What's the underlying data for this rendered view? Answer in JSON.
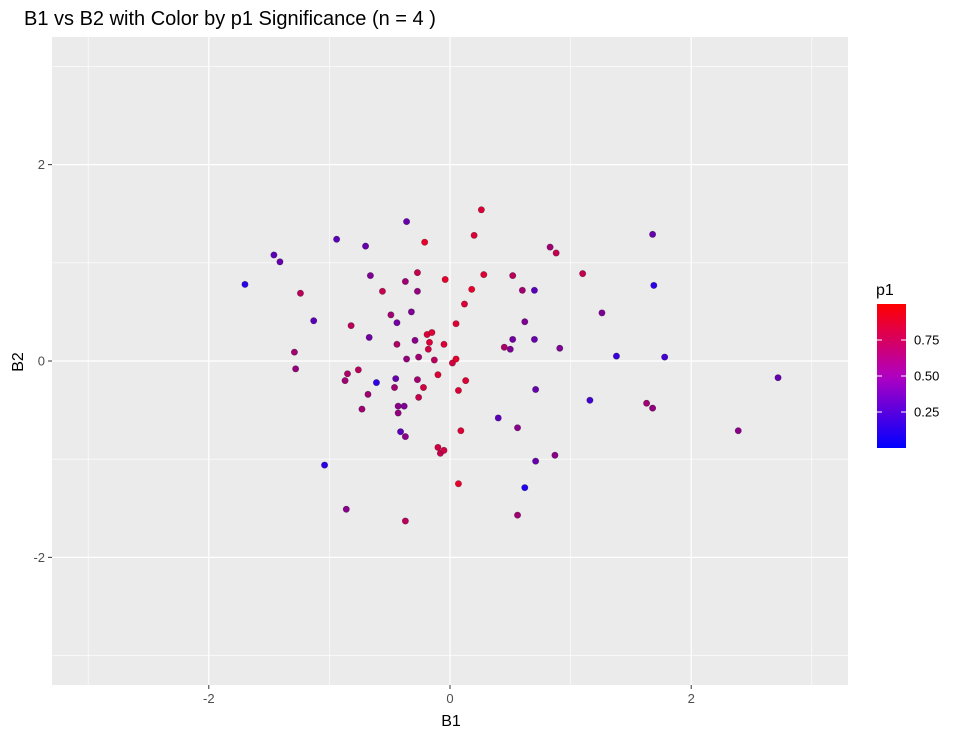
{
  "chart_data": {
    "type": "scatter",
    "title": "B1 vs B2 with Color by p1 Significance (n = 4 )",
    "xlabel": "B1",
    "ylabel": "B2",
    "xlim": [
      -3.3,
      3.3
    ],
    "ylim": [
      -3.3,
      3.3
    ],
    "x_ticks": [
      -2,
      0,
      2
    ],
    "y_ticks": [
      -2,
      0,
      2
    ],
    "x_tick_labels": [
      "-2",
      "0",
      "2"
    ],
    "y_tick_labels": [
      "-2",
      "0",
      "2"
    ],
    "x_minor_breaks": [
      -3,
      -1,
      1,
      3
    ],
    "y_minor_breaks": [
      -3,
      -1,
      1,
      3
    ],
    "grid": true,
    "panel_background": "#EBEBEB",
    "grid_color": "#FFFFFF",
    "legend": {
      "title": "p1",
      "placement": "right",
      "type": "colorbar",
      "low_color": "#0000FF",
      "high_color": "#FF0000",
      "range": [
        0,
        1
      ],
      "breaks": [
        0.25,
        0.5,
        0.75
      ],
      "labels": [
        "0.25",
        "0.50",
        "0.75"
      ]
    },
    "points": [
      {
        "x": -1.7,
        "y": 0.78,
        "p": 0.1
      },
      {
        "x": -1.46,
        "y": 1.08,
        "p": 0.3
      },
      {
        "x": -1.41,
        "y": 1.01,
        "p": 0.35
      },
      {
        "x": -1.24,
        "y": 0.69,
        "p": 0.7
      },
      {
        "x": -1.13,
        "y": 0.41,
        "p": 0.3
      },
      {
        "x": -1.29,
        "y": 0.09,
        "p": 0.6
      },
      {
        "x": -1.28,
        "y": -0.08,
        "p": 0.55
      },
      {
        "x": -1.04,
        "y": -1.06,
        "p": 0.1
      },
      {
        "x": -0.94,
        "y": 1.24,
        "p": 0.3
      },
      {
        "x": -0.86,
        "y": -1.51,
        "p": 0.5
      },
      {
        "x": -0.87,
        "y": -0.2,
        "p": 0.6
      },
      {
        "x": -0.85,
        "y": -0.13,
        "p": 0.65
      },
      {
        "x": -0.82,
        "y": 0.36,
        "p": 0.7
      },
      {
        "x": -0.76,
        "y": -0.09,
        "p": 0.7
      },
      {
        "x": -0.73,
        "y": -0.49,
        "p": 0.6
      },
      {
        "x": -0.7,
        "y": 1.17,
        "p": 0.35
      },
      {
        "x": -0.66,
        "y": 0.87,
        "p": 0.45
      },
      {
        "x": -0.67,
        "y": 0.24,
        "p": 0.4
      },
      {
        "x": -0.68,
        "y": -0.34,
        "p": 0.6
      },
      {
        "x": -0.61,
        "y": -0.22,
        "p": 0.1
      },
      {
        "x": -0.56,
        "y": 0.71,
        "p": 0.75
      },
      {
        "x": -0.49,
        "y": 0.47,
        "p": 0.6
      },
      {
        "x": -0.44,
        "y": 0.39,
        "p": 0.4
      },
      {
        "x": -0.44,
        "y": 0.17,
        "p": 0.65
      },
      {
        "x": -0.45,
        "y": -0.18,
        "p": 0.35
      },
      {
        "x": -0.46,
        "y": -0.27,
        "p": 0.6
      },
      {
        "x": -0.43,
        "y": -0.46,
        "p": 0.5
      },
      {
        "x": -0.43,
        "y": -0.53,
        "p": 0.55
      },
      {
        "x": -0.41,
        "y": -0.72,
        "p": 0.3
      },
      {
        "x": -0.38,
        "y": -0.46,
        "p": 0.45
      },
      {
        "x": -0.37,
        "y": -0.77,
        "p": 0.5
      },
      {
        "x": -0.36,
        "y": 1.42,
        "p": 0.35
      },
      {
        "x": -0.37,
        "y": 0.81,
        "p": 0.6
      },
      {
        "x": -0.36,
        "y": 0.02,
        "p": 0.55
      },
      {
        "x": -0.37,
        "y": -1.63,
        "p": 0.7
      },
      {
        "x": -0.32,
        "y": 0.5,
        "p": 0.45
      },
      {
        "x": -0.27,
        "y": 0.9,
        "p": 0.75
      },
      {
        "x": -0.27,
        "y": 0.71,
        "p": 0.55
      },
      {
        "x": -0.29,
        "y": 0.21,
        "p": 0.5
      },
      {
        "x": -0.26,
        "y": 0.04,
        "p": 0.6
      },
      {
        "x": -0.27,
        "y": -0.19,
        "p": 0.6
      },
      {
        "x": -0.26,
        "y": -0.37,
        "p": 0.75
      },
      {
        "x": -0.21,
        "y": 1.21,
        "p": 0.9
      },
      {
        "x": -0.22,
        "y": -0.27,
        "p": 0.8
      },
      {
        "x": -0.19,
        "y": 0.27,
        "p": 0.85
      },
      {
        "x": -0.17,
        "y": 0.19,
        "p": 0.85
      },
      {
        "x": -0.18,
        "y": 0.12,
        "p": 0.8
      },
      {
        "x": -0.15,
        "y": 0.29,
        "p": 0.85
      },
      {
        "x": -0.13,
        "y": 0.01,
        "p": 0.7
      },
      {
        "x": -0.1,
        "y": -0.14,
        "p": 0.85
      },
      {
        "x": -0.1,
        "y": -0.88,
        "p": 0.8
      },
      {
        "x": -0.08,
        "y": -0.94,
        "p": 0.75
      },
      {
        "x": -0.05,
        "y": -0.91,
        "p": 0.8
      },
      {
        "x": -0.05,
        "y": 0.17,
        "p": 0.85
      },
      {
        "x": -0.04,
        "y": 0.83,
        "p": 0.9
      },
      {
        "x": 0.02,
        "y": -0.02,
        "p": 0.8
      },
      {
        "x": 0.05,
        "y": 0.02,
        "p": 0.9
      },
      {
        "x": 0.05,
        "y": 0.38,
        "p": 0.85
      },
      {
        "x": 0.07,
        "y": -0.3,
        "p": 0.85
      },
      {
        "x": 0.07,
        "y": -1.25,
        "p": 0.9
      },
      {
        "x": 0.09,
        "y": -0.71,
        "p": 0.85
      },
      {
        "x": 0.12,
        "y": 0.58,
        "p": 0.85
      },
      {
        "x": 0.13,
        "y": -0.2,
        "p": 0.85
      },
      {
        "x": 0.18,
        "y": 0.73,
        "p": 0.9
      },
      {
        "x": 0.2,
        "y": 1.28,
        "p": 0.85
      },
      {
        "x": 0.26,
        "y": 1.54,
        "p": 0.85
      },
      {
        "x": 0.28,
        "y": 0.88,
        "p": 0.85
      },
      {
        "x": 0.4,
        "y": -0.58,
        "p": 0.3
      },
      {
        "x": 0.45,
        "y": 0.14,
        "p": 0.65
      },
      {
        "x": 0.5,
        "y": 0.12,
        "p": 0.45
      },
      {
        "x": 0.52,
        "y": 0.22,
        "p": 0.4
      },
      {
        "x": 0.52,
        "y": 0.87,
        "p": 0.7
      },
      {
        "x": 0.56,
        "y": -0.68,
        "p": 0.5
      },
      {
        "x": 0.56,
        "y": -1.57,
        "p": 0.6
      },
      {
        "x": 0.6,
        "y": 0.72,
        "p": 0.6
      },
      {
        "x": 0.62,
        "y": 0.4,
        "p": 0.45
      },
      {
        "x": 0.62,
        "y": -1.29,
        "p": 0.05
      },
      {
        "x": 0.7,
        "y": 0.72,
        "p": 0.3
      },
      {
        "x": 0.7,
        "y": 0.22,
        "p": 0.35
      },
      {
        "x": 0.71,
        "y": -0.29,
        "p": 0.35
      },
      {
        "x": 0.71,
        "y": -1.02,
        "p": 0.35
      },
      {
        "x": 0.83,
        "y": 1.16,
        "p": 0.6
      },
      {
        "x": 0.87,
        "y": -0.96,
        "p": 0.5
      },
      {
        "x": 0.88,
        "y": 1.1,
        "p": 0.75
      },
      {
        "x": 0.91,
        "y": 0.13,
        "p": 0.45
      },
      {
        "x": 1.1,
        "y": 0.89,
        "p": 0.75
      },
      {
        "x": 1.16,
        "y": -0.4,
        "p": 0.2
      },
      {
        "x": 1.26,
        "y": 0.49,
        "p": 0.45
      },
      {
        "x": 1.38,
        "y": 0.05,
        "p": 0.15
      },
      {
        "x": 1.63,
        "y": -0.43,
        "p": 0.6
      },
      {
        "x": 1.68,
        "y": 1.29,
        "p": 0.35
      },
      {
        "x": 1.69,
        "y": 0.77,
        "p": 0.1
      },
      {
        "x": 1.68,
        "y": -0.48,
        "p": 0.55
      },
      {
        "x": 1.78,
        "y": 0.04,
        "p": 0.2
      },
      {
        "x": 2.39,
        "y": -0.71,
        "p": 0.5
      },
      {
        "x": 2.72,
        "y": -0.17,
        "p": 0.35
      }
    ]
  }
}
